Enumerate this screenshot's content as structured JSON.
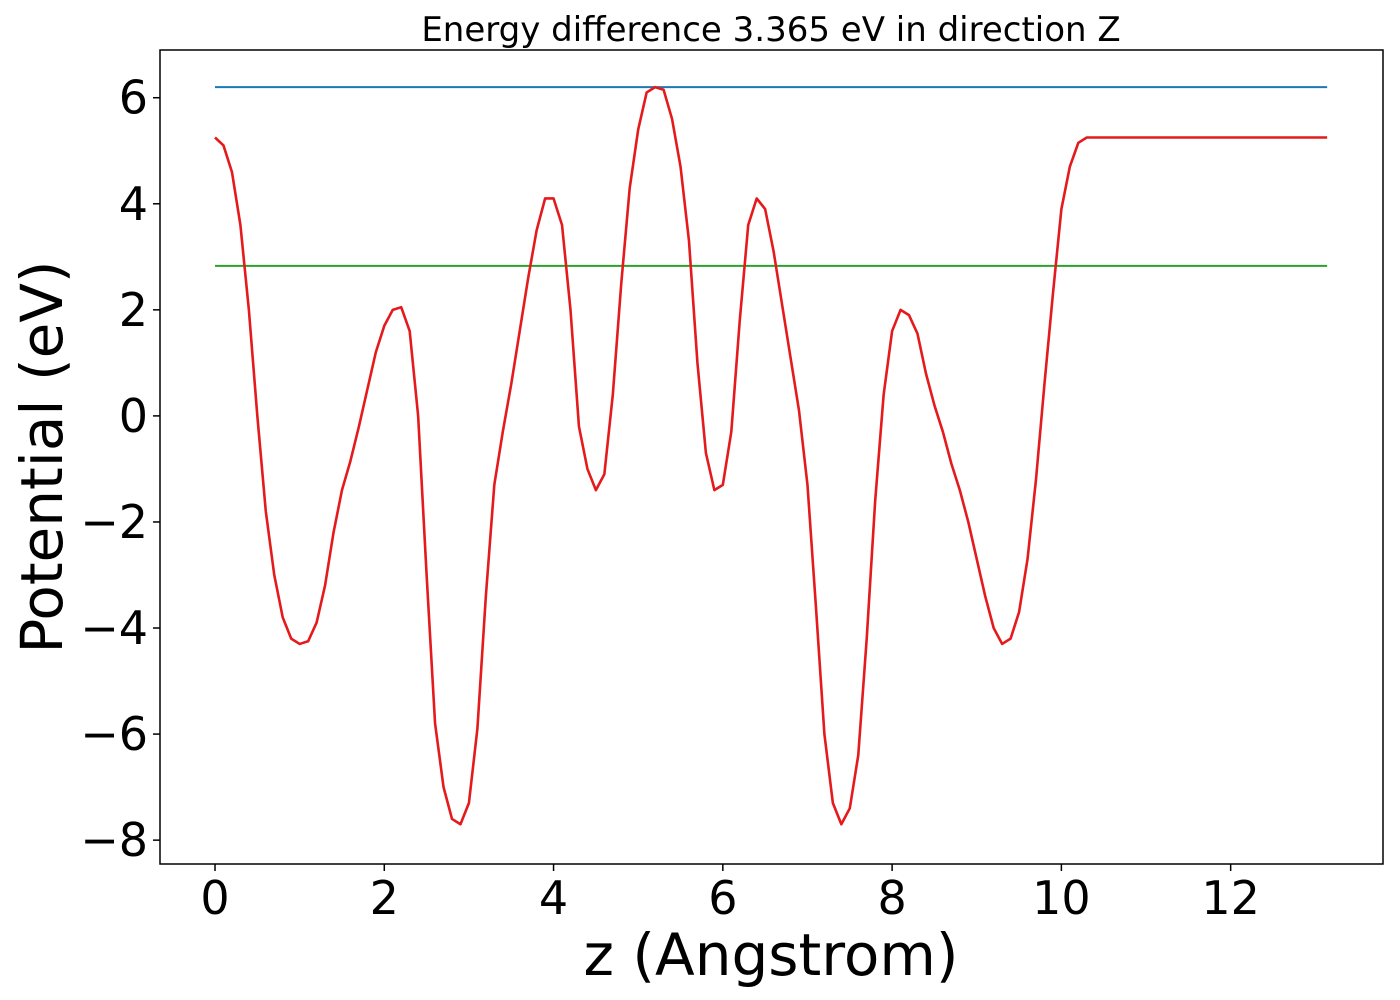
{
  "chart_data": {
    "type": "line",
    "title": "Energy difference 3.365 eV in direction Z",
    "xlabel": "z (Angstrom)",
    "ylabel": "Potential (eV)",
    "xlim": [
      -0.65,
      13.8
    ],
    "ylim": [
      -8.45,
      6.9
    ],
    "xticks": [
      0,
      2,
      4,
      6,
      8,
      10,
      12
    ],
    "xtick_labels": [
      "0",
      "2",
      "4",
      "6",
      "8",
      "10",
      "12"
    ],
    "yticks": [
      6,
      4,
      2,
      0,
      -2,
      -4,
      -6,
      -8
    ],
    "ytick_labels": [
      "6",
      "4",
      "2",
      "0",
      "−2",
      "−4",
      "−6",
      "−8"
    ],
    "grid": false,
    "legend": "none",
    "series": [
      {
        "color": "#1f77b4",
        "x": [
          0,
          13.14
        ],
        "y": [
          6.2,
          6.2
        ]
      },
      {
        "color": "#2ca02c",
        "x": [
          0,
          13.14
        ],
        "y": [
          2.83,
          2.83
        ]
      },
      {
        "color": "#e41a1c",
        "x": [
          0,
          0.1,
          0.2,
          0.3,
          0.4,
          0.5,
          0.6,
          0.7,
          0.8,
          0.9,
          1.0,
          1.1,
          1.2,
          1.3,
          1.4,
          1.5,
          1.6,
          1.7,
          1.8,
          1.9,
          2.0,
          2.1,
          2.2,
          2.3,
          2.4,
          2.5,
          2.6,
          2.7,
          2.8,
          2.9,
          3.0,
          3.1,
          3.2,
          3.3,
          3.4,
          3.5,
          3.6,
          3.7,
          3.8,
          3.9,
          4.0,
          4.1,
          4.2,
          4.3,
          4.4,
          4.5,
          4.6,
          4.7,
          4.8,
          4.9,
          5.0,
          5.1,
          5.2,
          5.3,
          5.4,
          5.5,
          5.6,
          5.7,
          5.8,
          5.9,
          6.0,
          6.1,
          6.2,
          6.3,
          6.4,
          6.5,
          6.6,
          6.7,
          6.8,
          6.9,
          7.0,
          7.1,
          7.2,
          7.3,
          7.4,
          7.5,
          7.6,
          7.7,
          7.8,
          7.9,
          8.0,
          8.1,
          8.2,
          8.3,
          8.4,
          8.5,
          8.6,
          8.7,
          8.8,
          8.9,
          9.0,
          9.1,
          9.2,
          9.3,
          9.4,
          9.5,
          9.6,
          9.7,
          9.8,
          9.9,
          10.0,
          10.1,
          10.2,
          10.3,
          10.4,
          10.5,
          10.6,
          10.7,
          10.8,
          10.9,
          11.0,
          11.1,
          11.2,
          11.3,
          11.4,
          11.5,
          11.6,
          11.7,
          11.8,
          11.9,
          12.0,
          12.1,
          12.2,
          12.3,
          12.4,
          12.5,
          12.6,
          12.7,
          12.8,
          12.9,
          13.0,
          13.14
        ],
        "y": [
          5.25,
          5.1,
          4.6,
          3.6,
          2.0,
          0.0,
          -1.8,
          -3.0,
          -3.8,
          -4.2,
          -4.3,
          -4.25,
          -3.9,
          -3.2,
          -2.2,
          -1.4,
          -0.85,
          -0.2,
          0.5,
          1.2,
          1.7,
          2.0,
          2.05,
          1.6,
          0.0,
          -3.0,
          -5.8,
          -7.0,
          -7.6,
          -7.7,
          -7.3,
          -5.9,
          -3.4,
          -1.3,
          -0.3,
          0.6,
          1.6,
          2.6,
          3.5,
          4.1,
          4.1,
          3.6,
          2.0,
          -0.2,
          -1.0,
          -1.4,
          -1.1,
          0.4,
          2.5,
          4.3,
          5.4,
          6.1,
          6.2,
          6.15,
          5.6,
          4.7,
          3.3,
          1.0,
          -0.7,
          -1.4,
          -1.3,
          -0.3,
          1.8,
          3.6,
          4.1,
          3.9,
          3.1,
          2.1,
          1.1,
          0.1,
          -1.3,
          -3.6,
          -6.0,
          -7.3,
          -7.7,
          -7.4,
          -6.4,
          -4.2,
          -1.6,
          0.4,
          1.6,
          2.0,
          1.9,
          1.55,
          0.8,
          0.2,
          -0.3,
          -0.9,
          -1.4,
          -2.0,
          -2.7,
          -3.4,
          -4.0,
          -4.3,
          -4.2,
          -3.7,
          -2.7,
          -1.2,
          0.6,
          2.3,
          3.9,
          4.7,
          5.15,
          5.25,
          5.25,
          5.25,
          5.25,
          5.25,
          5.25,
          5.25,
          5.25,
          5.25,
          5.25,
          5.25,
          5.25,
          5.25,
          5.25,
          5.25,
          5.25,
          5.25,
          5.25,
          5.25,
          5.25,
          5.25,
          5.25,
          5.25,
          5.25,
          5.25,
          5.25,
          5.25,
          5.25,
          5.25
        ]
      }
    ]
  }
}
